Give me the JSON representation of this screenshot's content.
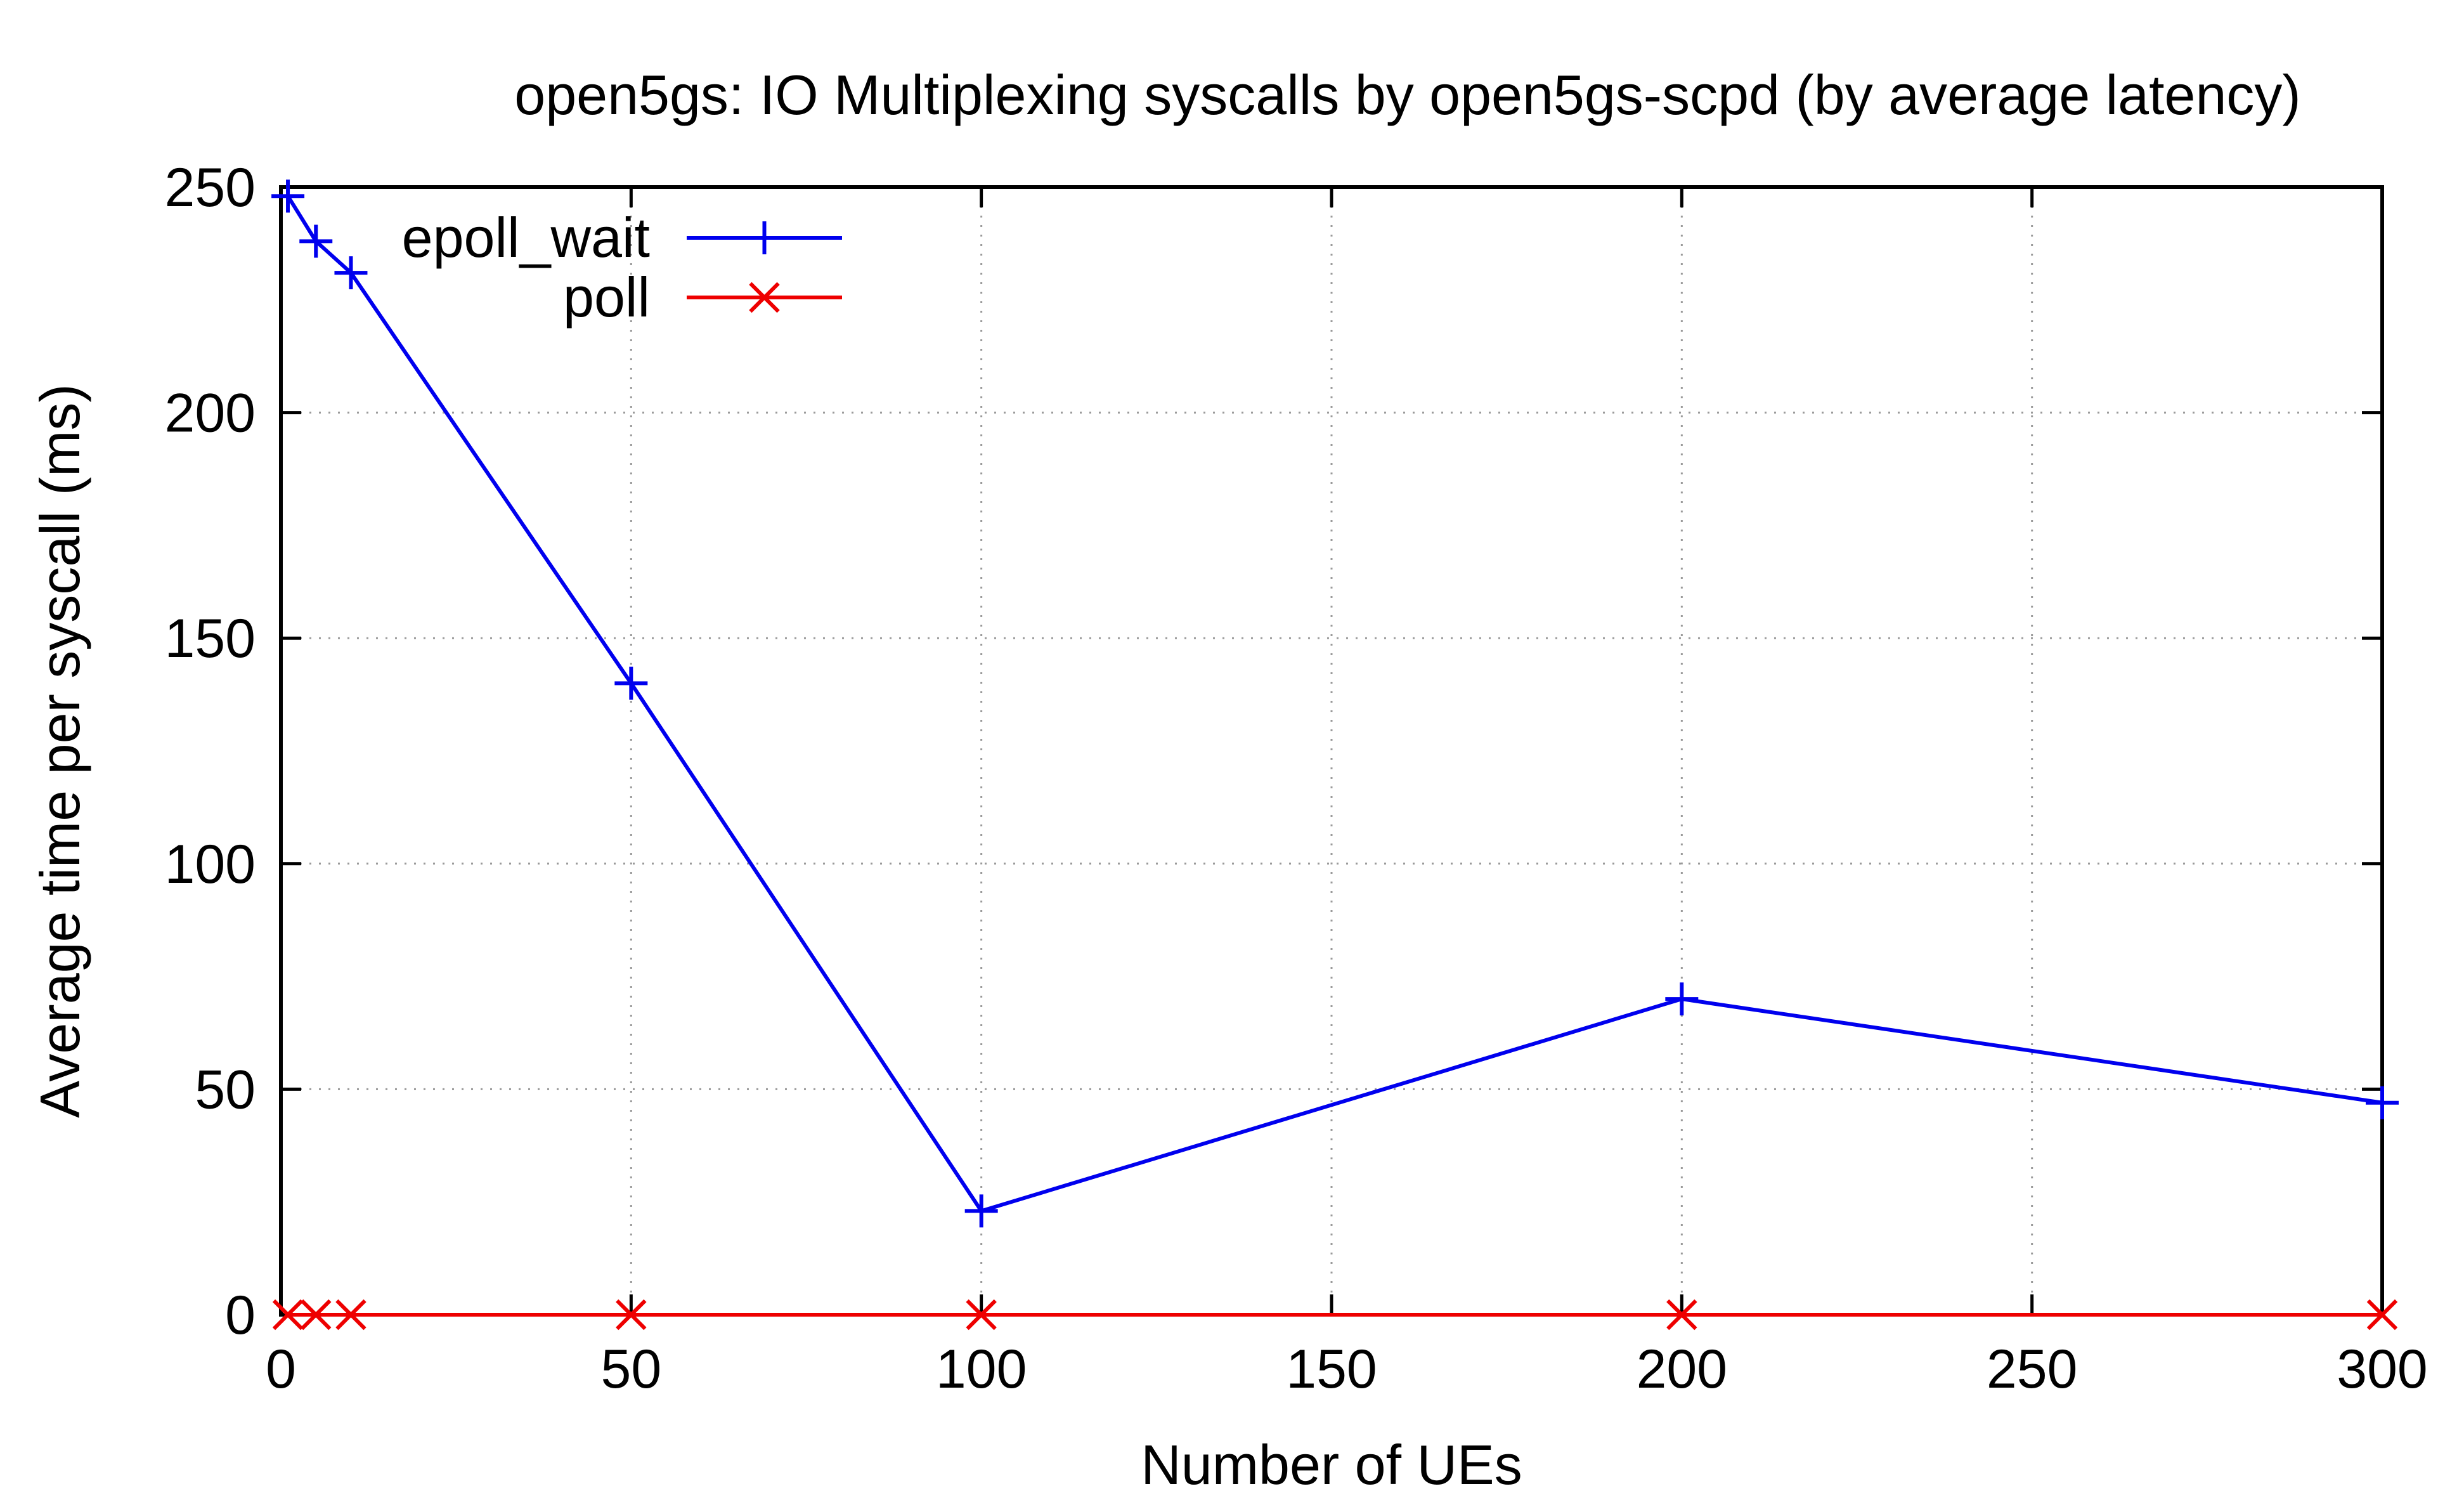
{
  "chart_data": {
    "type": "line",
    "title": "open5gs: IO Multiplexing syscalls by open5gs-scpd (by average latency)",
    "xlabel": "Number of UEs",
    "ylabel": "Average time per syscall (ms)",
    "xlim": [
      0,
      300
    ],
    "ylim": [
      0,
      250
    ],
    "xticks": [
      0,
      50,
      100,
      150,
      200,
      250,
      300
    ],
    "yticks": [
      0,
      50,
      100,
      150,
      200,
      250
    ],
    "grid": true,
    "legend_position": "top-left",
    "series": [
      {
        "name": "epoll_wait",
        "color": "#0000ee",
        "marker": "plus",
        "x": [
          1,
          5,
          10,
          50,
          100,
          200,
          300
        ],
        "y": [
          248,
          238,
          231,
          140,
          23,
          70,
          47
        ]
      },
      {
        "name": "poll",
        "color": "#ee0000",
        "marker": "cross",
        "x": [
          1,
          5,
          10,
          50,
          100,
          200,
          300
        ],
        "y": [
          0,
          0,
          0,
          0,
          0,
          0,
          0
        ]
      }
    ]
  }
}
